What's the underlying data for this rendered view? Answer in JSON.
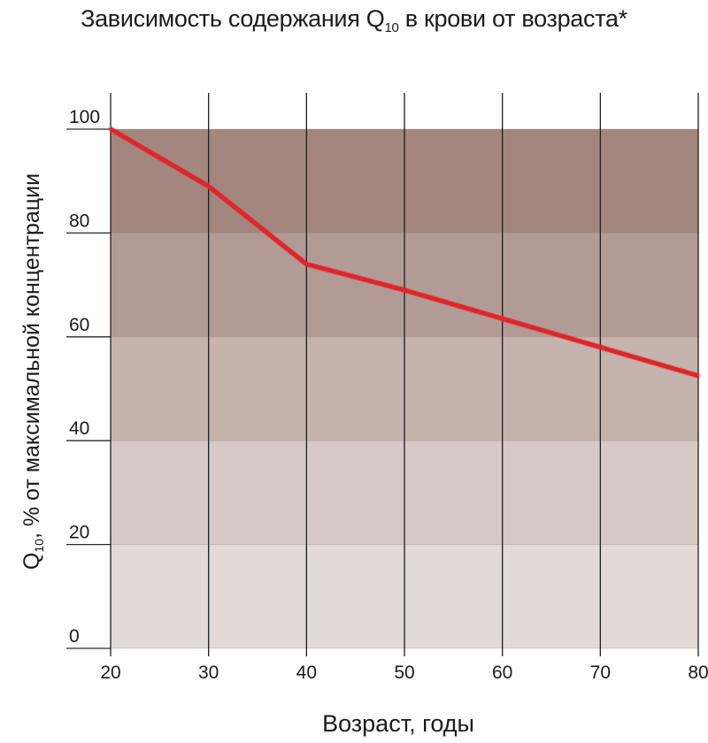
{
  "chart_data": {
    "type": "line",
    "title_prefix": "Зависимость содержания Q",
    "title_sub": "10",
    "title_suffix": " в крови от возраста*",
    "ylabel_prefix": "Q",
    "ylabel_sub": "10",
    "ylabel_suffix": ", % от максимальной концентрации",
    "xlabel": "Возраст, годы",
    "x": [
      20,
      30,
      40,
      50,
      60,
      70,
      80
    ],
    "series": [
      {
        "values": [
          100,
          89,
          74,
          69,
          63.5,
          58,
          52.5
        ],
        "color": "#e0262b"
      }
    ],
    "xlim": [
      20,
      80
    ],
    "ylim": [
      0,
      100
    ],
    "x_ticks": [
      "20",
      "30",
      "40",
      "50",
      "60",
      "70",
      "80"
    ],
    "y_ticks": [
      "0",
      "20",
      "40",
      "60",
      "80",
      "100"
    ],
    "bands": [
      {
        "from": 0,
        "to": 20,
        "color": "#e3dad8"
      },
      {
        "from": 20,
        "to": 40,
        "color": "#d6c9c6"
      },
      {
        "from": 40,
        "to": 60,
        "color": "#c5b3ae"
      },
      {
        "from": 60,
        "to": 80,
        "color": "#b39b95"
      },
      {
        "from": 80,
        "to": 100,
        "color": "#a3877f"
      }
    ],
    "grid": true
  }
}
